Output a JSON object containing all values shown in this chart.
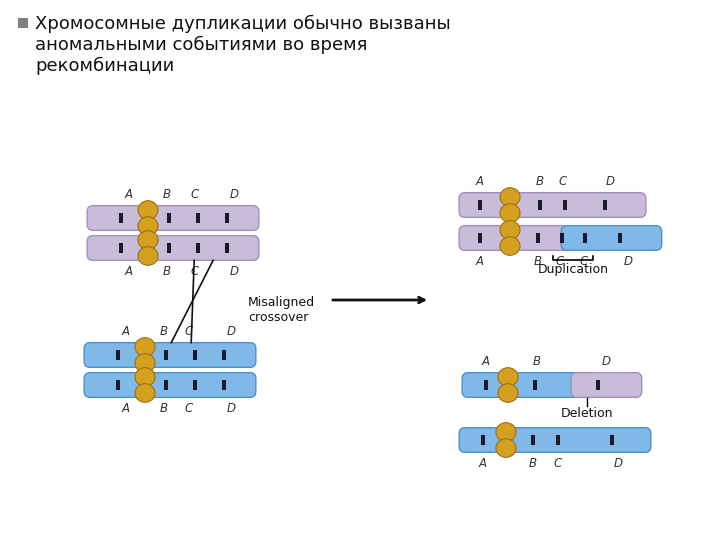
{
  "background_color": "#ffffff",
  "text_color": "#111111",
  "label_color": "#333333",
  "bullet_color": "#808080",
  "title_text": "Хромосомные дупликации обычно вызваны\nаномальными событиями во время\nрекомбинации",
  "misaligned_label": "Misaligned\ncrossover",
  "duplication_label": "Duplication",
  "deletion_label": "Deletion",
  "purple_color": "#c8bcd8",
  "purple_edge": "#a090c0",
  "purple_dark": "#b0a0c8",
  "blue_color": "#80b8e8",
  "blue_edge": "#5090c8",
  "blue_dark": "#60a0d8",
  "mixed_purple": "#c8bcd8",
  "mixed_blue": "#80b8e8",
  "centromere_color": "#d4a020",
  "centromere_edge": "#a07010",
  "band_color": "#1a1a2e",
  "arrow_color": "#111111",
  "cross_line_color": "#111111"
}
